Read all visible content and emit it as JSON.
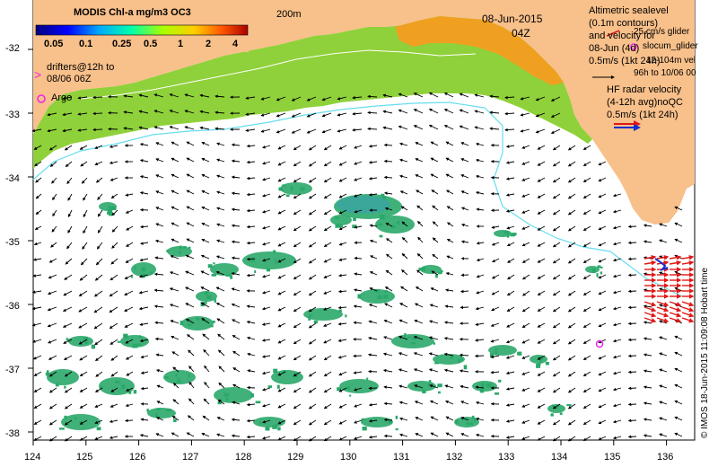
{
  "header": {
    "title": "MODIS Chl-a mg/m3 OC3",
    "isobath_label": "200m",
    "date": "08-Jun-2015",
    "time": "04Z"
  },
  "colorbar": {
    "ticks": [
      "0.05",
      "0.1",
      "0.25",
      "0.5",
      "1",
      "2",
      "4"
    ]
  },
  "legend_left": {
    "drifters_line1": "drifters@12h to",
    "drifters_line2": "08/06 06Z",
    "argo": "Argo"
  },
  "legend_right": {
    "alt_line1": "Altimetric sealevel",
    "alt_line2": "(0.1m contours)",
    "alt_line3": "and velocity for",
    "alt_line4": "08-Jun (4d)",
    "alt_scale": "0.5m/s (1kt 24h)",
    "glider_line1": "25 cm/s glider",
    "glider_line2": "slocum_glider",
    "glider_line3": "12-104m vel",
    "glider_line4": "96h to 10/06 00",
    "hf_line1": "HF radar velocity",
    "hf_line2": "(4-12h avg)noQC",
    "hf_scale": "0.5m/s (1kt 24h)"
  },
  "axes": {
    "x_ticks": [
      "124",
      "125",
      "126",
      "127",
      "128",
      "129",
      "130",
      "131",
      "132",
      "133",
      "134",
      "135",
      "136"
    ],
    "y_ticks": [
      "-32",
      "-33",
      "-34",
      "-35",
      "-36",
      "-37",
      "-38"
    ]
  },
  "credit": "© IMOS 18-Jun-2015 11:09:08 Hobart time",
  "colors": {
    "land": "#f8c08a",
    "isobath": "#66ddee",
    "chl_low": "#2aa86a",
    "chl_mid": "#8fd13a",
    "chl_high": "#f0a020",
    "hf_arrow": "#e01818",
    "glider": "#1030d0",
    "drifter": "#ee22ee"
  }
}
